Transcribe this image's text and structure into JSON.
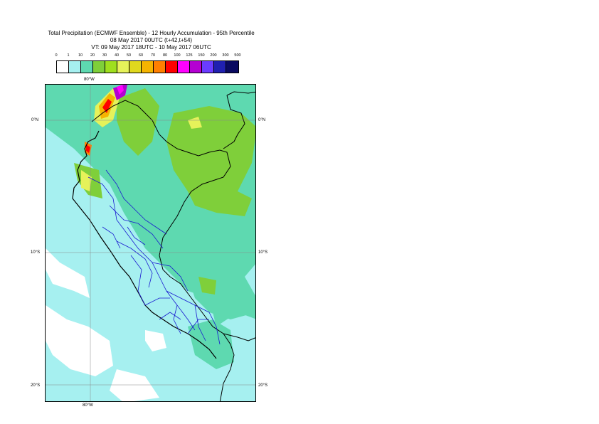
{
  "title": {
    "line1": "Total Precipitation (ECMWF Ensemble) - 12 Hourly Accumulation - 95th Percentile",
    "line2": "08 May 2017 00UTC (t+42,t+54)",
    "line3": "VT: 09 May 2017 18UTC - 10 May 2017 06UTC"
  },
  "legend": {
    "labels": [
      "0",
      "1",
      "10",
      "20",
      "30",
      "40",
      "50",
      "60",
      "70",
      "80",
      "100",
      "125",
      "150",
      "200",
      "300",
      "500"
    ],
    "colors": [
      "#ffffff",
      "#a6f0f0",
      "#5ed9b0",
      "#7fcf3a",
      "#9fdf1e",
      "#e6f25a",
      "#e0d81e",
      "#f5b400",
      "#ff7f00",
      "#ff0000",
      "#ff00ff",
      "#b400d2",
      "#6a3cff",
      "#2020b0",
      "#0a0a60"
    ]
  },
  "axes": {
    "lon_top": "80°W",
    "lon_bottom": "80°W",
    "lat_0_left": "0°N",
    "lat_0_right": "0°N",
    "lat_10_left": "10°S",
    "lat_10_right": "10°S",
    "lat_20_left": "20°S",
    "lat_20_right": "20°S"
  }
}
